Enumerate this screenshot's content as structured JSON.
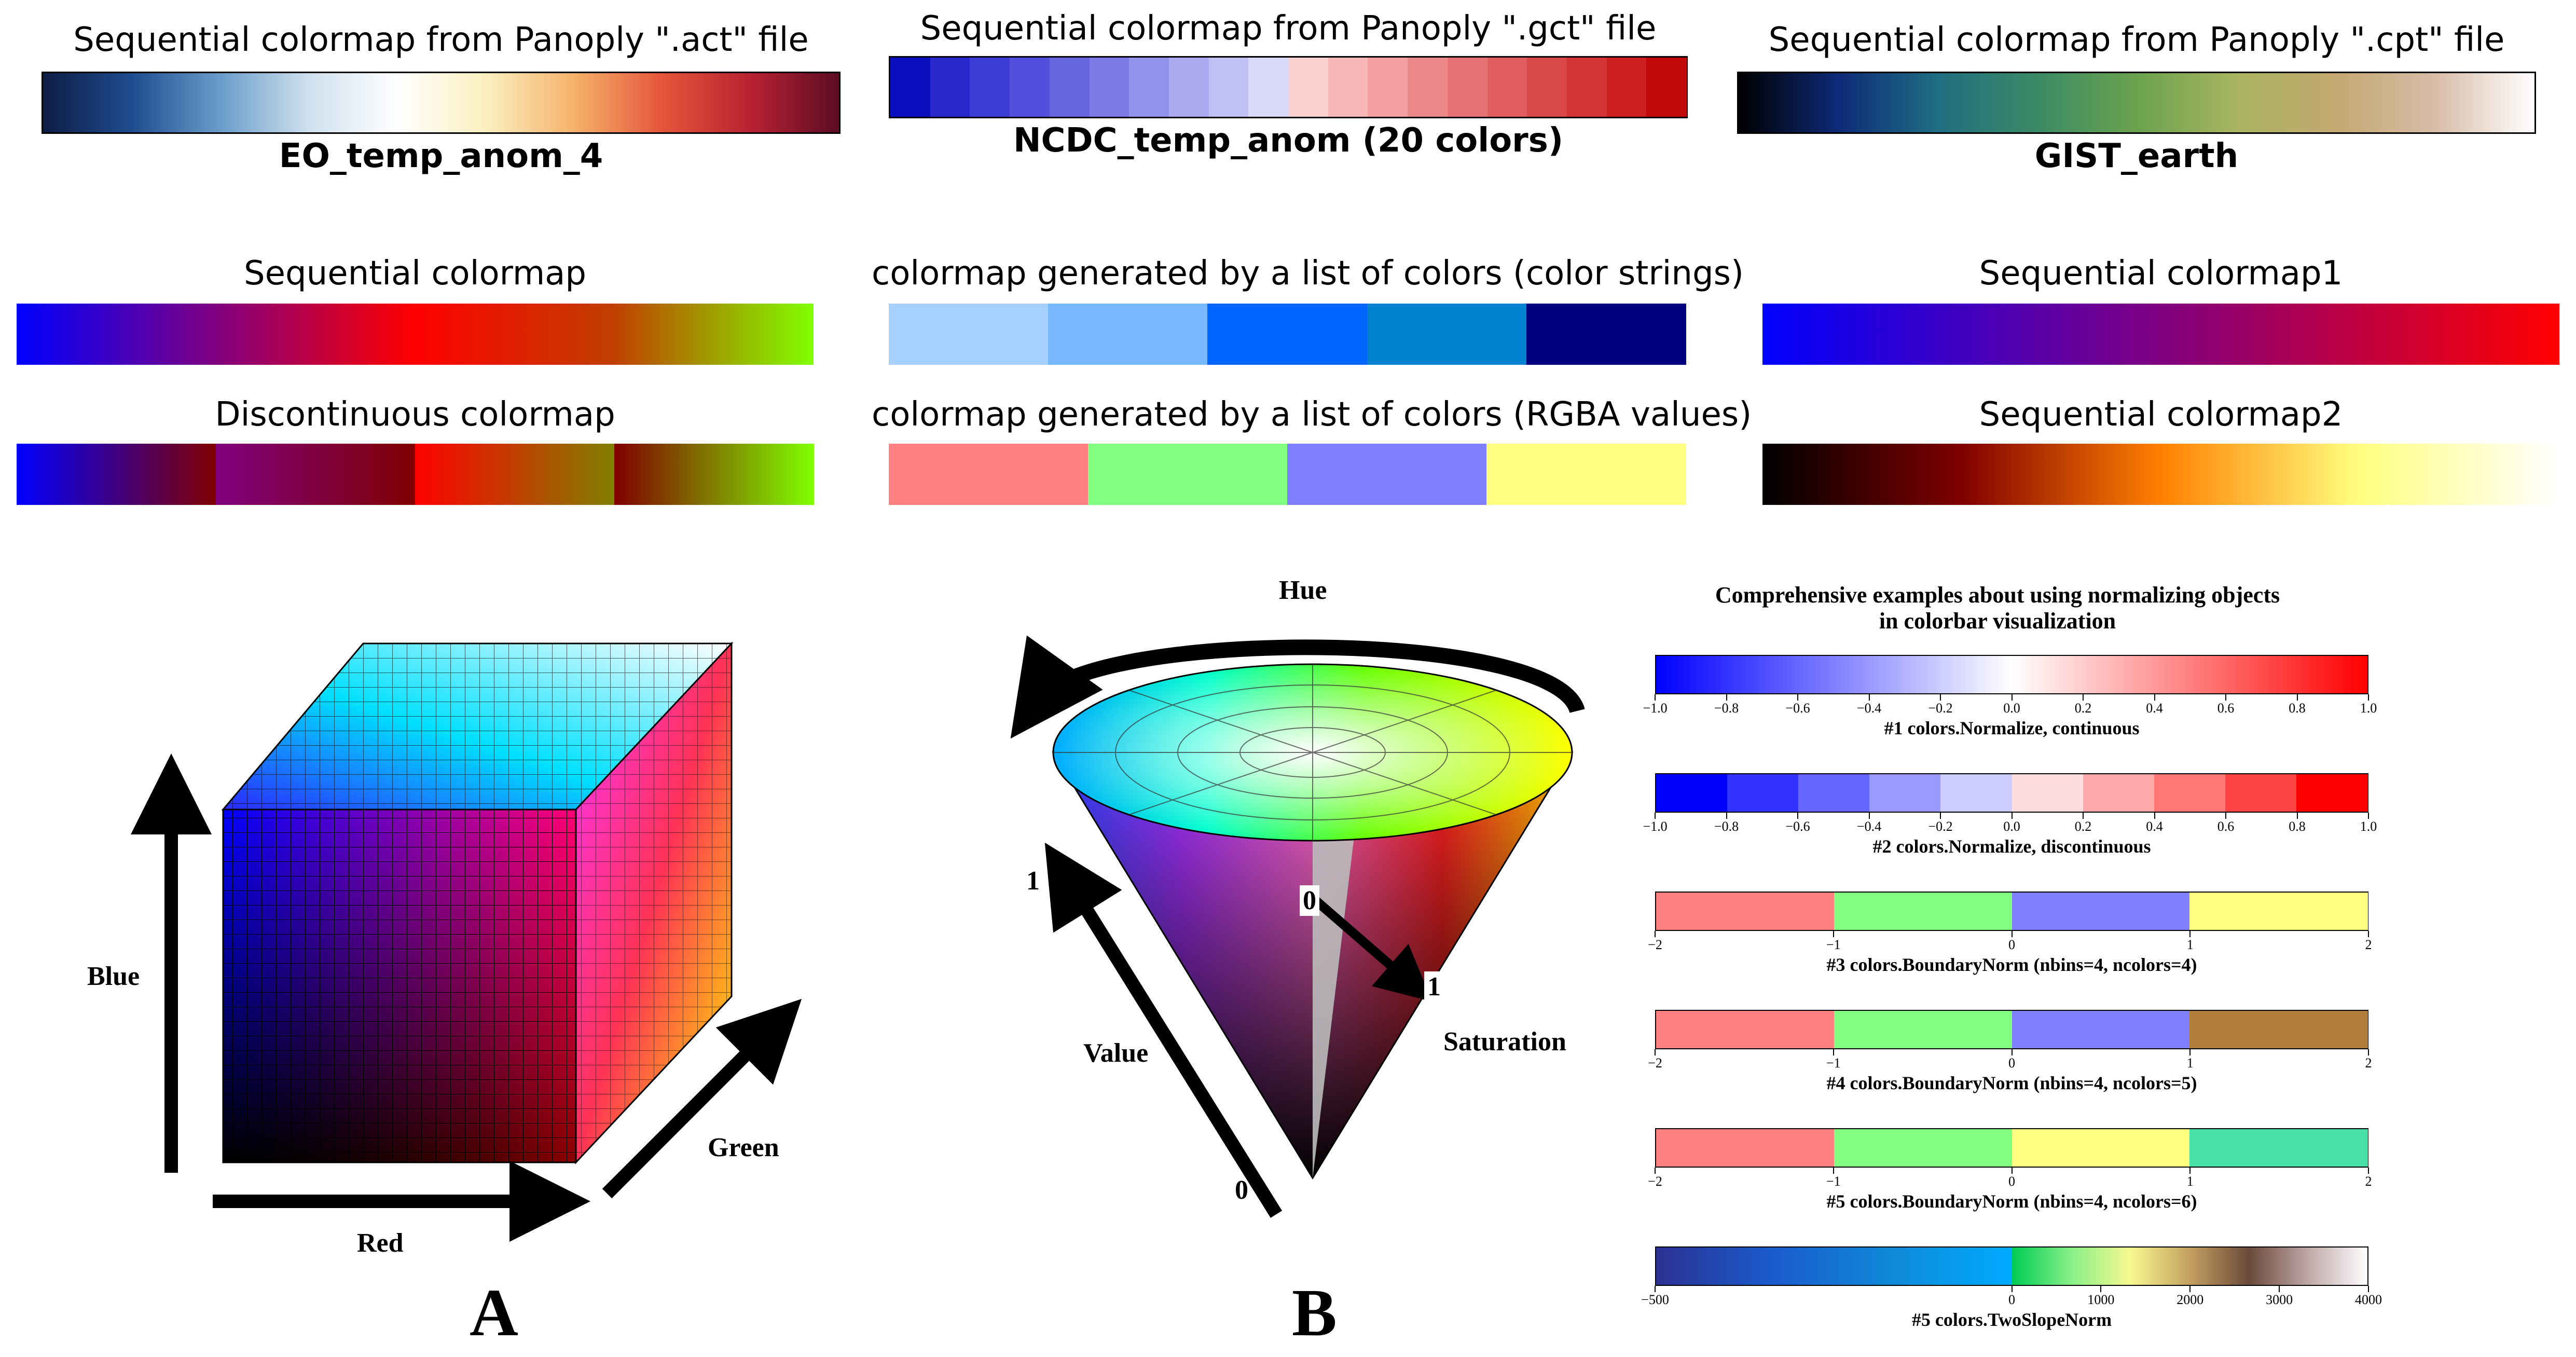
{
  "top": {
    "act": {
      "title": "Sequential colormap from Panoply \".act\" file",
      "name": "EO_temp_anom_4",
      "colors": [
        "#0d1d45",
        "#1f4c8f",
        "#6a9cc9",
        "#cfe0ee",
        "#ffffff",
        "#fbf0c0",
        "#f5b26b",
        "#e5553a",
        "#b82232",
        "#5c0c24"
      ]
    },
    "gct": {
      "title": "Sequential colormap from Panoply \".gct\" file",
      "name": "NCDC_temp_anom (20 colors)",
      "colors": [
        "#0b10bf",
        "#2828cc",
        "#3c3cd6",
        "#5050dc",
        "#6565e0",
        "#7b7be5",
        "#9292ea",
        "#a9a9ef",
        "#c0c0f3",
        "#d9d9f7",
        "#fbd0d0",
        "#f7b7b7",
        "#f2a0a0",
        "#ec8a8a",
        "#e67474",
        "#e05e5e",
        "#d94848",
        "#d43434",
        "#cc2020",
        "#c20a0a"
      ]
    },
    "cpt": {
      "title": "Sequential colormap from Panoply \".cpt\" file",
      "name": "GIST_earth",
      "colors": [
        "#000000",
        "#0d2a78",
        "#1f6e82",
        "#3b8a66",
        "#6aa24e",
        "#a9b460",
        "#c4a870",
        "#d8bca8",
        "#ffffff"
      ]
    }
  },
  "mid": {
    "sequential": {
      "title": "Sequential colormap",
      "colors": [
        "#0000ff",
        "#800080",
        "#ff0000",
        "#bf4000",
        "#80ff00"
      ]
    },
    "discontinuous": {
      "title": "Discontinuous colormap",
      "segments": [
        [
          "#0000ff",
          "#800000"
        ],
        [
          "#800080",
          "#800000"
        ],
        [
          "#ff0000",
          "#808000"
        ],
        [
          "#800000",
          "#80ff00"
        ]
      ]
    },
    "color_strings": {
      "title": "colormap generated by a list of colors (color strings)",
      "colors": [
        "#a6d0ff",
        "#78b8ff",
        "#0064ff",
        "#0082d0",
        "#00007f"
      ]
    },
    "rgba": {
      "title": "colormap generated by a list of colors (RGBA values)",
      "colors": [
        "#ff8080",
        "#80ff80",
        "#8080ff",
        "#ffff80"
      ]
    },
    "seq1": {
      "title": "Sequential colormap1",
      "colors": [
        "#0000ff",
        "#800080",
        "#ff0000"
      ]
    },
    "seq2": {
      "title": "Sequential colormap2",
      "colors": [
        "#000000",
        "#800000",
        "#ff8000",
        "#ffff80",
        "#ffffff"
      ]
    }
  },
  "rgb_cube": {
    "blue": "Blue",
    "red": "Red",
    "green": "Green",
    "panel_label": "A"
  },
  "hsv_cone": {
    "hue": "Hue",
    "value": "Value",
    "saturation": "Saturation",
    "one_value": "1",
    "zero_value": "0",
    "zero_sat": "0",
    "one_sat": "1",
    "panel_label": "B"
  },
  "norm": {
    "title_line1": "Comprehensive examples about using normalizing objects",
    "title_line2": "in colorbar visualization",
    "bars": [
      {
        "label": "#1 colors.Normalize, continuous",
        "type": "continuous",
        "range": [
          -1,
          1
        ],
        "ticks": [
          "−1.0",
          "−0.8",
          "−0.6",
          "−0.4",
          "−0.2",
          "0.0",
          "0.2",
          "0.4",
          "0.6",
          "0.8",
          "1.0"
        ],
        "colors": [
          "#0000ff",
          "#ffffff",
          "#ff0000"
        ]
      },
      {
        "label": "#2 colors.Normalize, discontinuous",
        "type": "discrete",
        "range": [
          -1,
          1
        ],
        "ticks": [
          "−1.0",
          "−0.8",
          "−0.6",
          "−0.4",
          "−0.2",
          "0.0",
          "0.2",
          "0.4",
          "0.6",
          "0.8",
          "1.0"
        ],
        "colors": [
          "#0000ff",
          "#3333ff",
          "#6666ff",
          "#9999ff",
          "#ccccff",
          "#ffdddd",
          "#ffaaaa",
          "#ff7777",
          "#ff4444",
          "#ff0000"
        ]
      },
      {
        "label": "#3 colors.BoundaryNorm (nbins=4, ncolors=4)",
        "type": "discrete",
        "range": [
          -2,
          2
        ],
        "ticks": [
          "−2",
          "−1",
          "0",
          "1",
          "2"
        ],
        "colors": [
          "#ff8080",
          "#80ff80",
          "#8080ff",
          "#ffff80"
        ]
      },
      {
        "label": "#4 colors.BoundaryNorm (nbins=4, ncolors=5)",
        "type": "discrete",
        "range": [
          -2,
          2
        ],
        "ticks": [
          "−2",
          "−1",
          "0",
          "1",
          "2"
        ],
        "colors": [
          "#ff8080",
          "#80ff80",
          "#8080ff",
          "#b07d3a"
        ]
      },
      {
        "label": "#5 colors.BoundaryNorm (nbins=4, ncolors=6)",
        "type": "discrete",
        "range": [
          -2,
          2
        ],
        "ticks": [
          "−2",
          "−1",
          "0",
          "1",
          "2"
        ],
        "colors": [
          "#ff8080",
          "#80ff80",
          "#ffff80",
          "#48e0a8"
        ]
      },
      {
        "label": "#5 colors.TwoSlopeNorm",
        "type": "twoslope",
        "range": [
          -500,
          4000
        ],
        "center": 0,
        "ticks": [
          "−500",
          "0",
          "1000",
          "2000",
          "3000",
          "4000"
        ],
        "tickvals": [
          -500,
          0,
          1000,
          2000,
          3000,
          4000
        ],
        "colors_low": [
          "#2b3192",
          "#1a5ccc",
          "#0f8ad8",
          "#00aaff"
        ],
        "colors_high": [
          "#00cc55",
          "#88f088",
          "#f8f890",
          "#c4a060",
          "#6a4a3a",
          "#c0a8a8",
          "#ffffff"
        ]
      }
    ]
  }
}
